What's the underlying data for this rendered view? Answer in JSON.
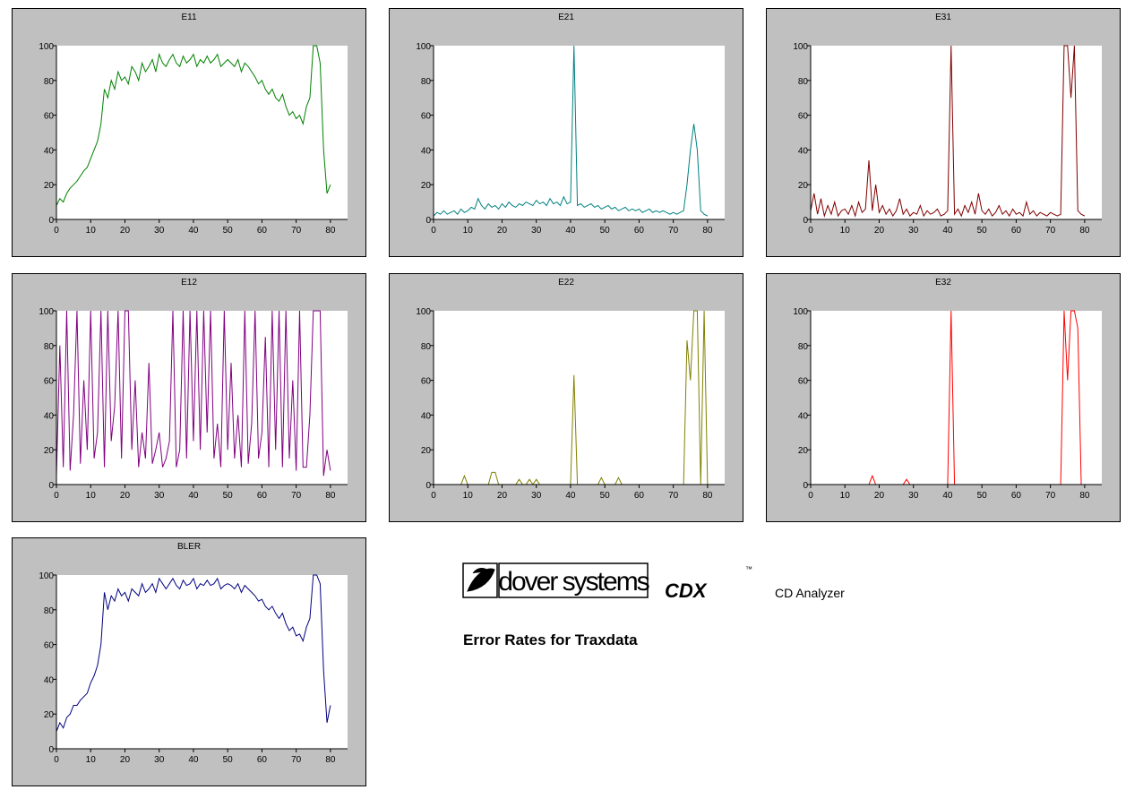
{
  "chart_data": [
    {
      "type": "line",
      "title": "E11",
      "color": "#008000",
      "xlim": [
        0,
        85
      ],
      "xticks": [
        0,
        10,
        20,
        30,
        40,
        50,
        60,
        70,
        80
      ],
      "ylim": [
        0,
        100
      ],
      "yticks": [
        0,
        20,
        40,
        60,
        80,
        100
      ],
      "x": [
        0,
        1,
        2,
        3,
        4,
        5,
        6,
        7,
        8,
        9,
        10,
        11,
        12,
        13,
        14,
        15,
        16,
        17,
        18,
        19,
        20,
        21,
        22,
        23,
        24,
        25,
        26,
        27,
        28,
        29,
        30,
        31,
        32,
        33,
        34,
        35,
        36,
        37,
        38,
        39,
        40,
        41,
        42,
        43,
        44,
        45,
        46,
        47,
        48,
        49,
        50,
        51,
        52,
        53,
        54,
        55,
        56,
        57,
        58,
        59,
        60,
        61,
        62,
        63,
        64,
        65,
        66,
        67,
        68,
        69,
        70,
        71,
        72,
        73,
        74,
        75,
        76,
        77,
        78,
        79,
        80
      ],
      "values": [
        8,
        12,
        10,
        15,
        18,
        20,
        22,
        25,
        28,
        30,
        35,
        40,
        45,
        55,
        75,
        70,
        80,
        75,
        85,
        80,
        82,
        78,
        88,
        85,
        80,
        90,
        85,
        88,
        92,
        85,
        95,
        90,
        88,
        92,
        95,
        90,
        88,
        94,
        90,
        92,
        95,
        88,
        92,
        90,
        94,
        90,
        92,
        95,
        88,
        90,
        92,
        90,
        88,
        92,
        85,
        90,
        88,
        85,
        82,
        78,
        80,
        75,
        72,
        75,
        70,
        68,
        72,
        65,
        60,
        62,
        58,
        60,
        55,
        65,
        70,
        100,
        100,
        90,
        40,
        15,
        20
      ]
    },
    {
      "type": "line",
      "title": "E21",
      "color": "#008080",
      "xlim": [
        0,
        85
      ],
      "xticks": [
        0,
        10,
        20,
        30,
        40,
        50,
        60,
        70,
        80
      ],
      "ylim": [
        0,
        100
      ],
      "yticks": [
        0,
        20,
        40,
        60,
        80,
        100
      ],
      "x": [
        0,
        1,
        2,
        3,
        4,
        5,
        6,
        7,
        8,
        9,
        10,
        11,
        12,
        13,
        14,
        15,
        16,
        17,
        18,
        19,
        20,
        21,
        22,
        23,
        24,
        25,
        26,
        27,
        28,
        29,
        30,
        31,
        32,
        33,
        34,
        35,
        36,
        37,
        38,
        39,
        40,
        41,
        42,
        43,
        44,
        45,
        46,
        47,
        48,
        49,
        50,
        51,
        52,
        53,
        54,
        55,
        56,
        57,
        58,
        59,
        60,
        61,
        62,
        63,
        64,
        65,
        66,
        67,
        68,
        69,
        70,
        71,
        72,
        73,
        74,
        75,
        76,
        77,
        78,
        79,
        80
      ],
      "values": [
        2,
        4,
        3,
        5,
        3,
        4,
        5,
        3,
        6,
        4,
        5,
        7,
        6,
        12,
        8,
        6,
        9,
        7,
        8,
        6,
        9,
        7,
        10,
        8,
        7,
        9,
        8,
        10,
        9,
        8,
        11,
        9,
        10,
        8,
        12,
        9,
        10,
        8,
        13,
        9,
        10,
        100,
        8,
        9,
        7,
        8,
        9,
        7,
        8,
        6,
        7,
        8,
        6,
        7,
        5,
        6,
        7,
        5,
        6,
        5,
        6,
        4,
        5,
        6,
        4,
        5,
        4,
        5,
        4,
        3,
        4,
        3,
        4,
        5,
        20,
        40,
        55,
        40,
        5,
        3,
        2
      ]
    },
    {
      "type": "line",
      "title": "E31",
      "color": "#800000",
      "xlim": [
        0,
        85
      ],
      "xticks": [
        0,
        10,
        20,
        30,
        40,
        50,
        60,
        70,
        80
      ],
      "ylim": [
        0,
        100
      ],
      "yticks": [
        0,
        20,
        40,
        60,
        80,
        100
      ],
      "x": [
        0,
        1,
        2,
        3,
        4,
        5,
        6,
        7,
        8,
        9,
        10,
        11,
        12,
        13,
        14,
        15,
        16,
        17,
        18,
        19,
        20,
        21,
        22,
        23,
        24,
        25,
        26,
        27,
        28,
        29,
        30,
        31,
        32,
        33,
        34,
        35,
        36,
        37,
        38,
        39,
        40,
        41,
        42,
        43,
        44,
        45,
        46,
        47,
        48,
        49,
        50,
        51,
        52,
        53,
        54,
        55,
        56,
        57,
        58,
        59,
        60,
        61,
        62,
        63,
        64,
        65,
        66,
        67,
        68,
        69,
        70,
        71,
        72,
        73,
        74,
        75,
        76,
        77,
        78,
        79,
        80
      ],
      "values": [
        5,
        15,
        3,
        12,
        2,
        8,
        3,
        10,
        2,
        5,
        6,
        3,
        8,
        2,
        10,
        4,
        6,
        34,
        5,
        20,
        4,
        8,
        3,
        6,
        2,
        5,
        12,
        3,
        6,
        2,
        4,
        3,
        8,
        2,
        5,
        3,
        4,
        6,
        2,
        3,
        5,
        100,
        3,
        6,
        2,
        8,
        4,
        10,
        3,
        15,
        5,
        3,
        6,
        2,
        4,
        8,
        3,
        5,
        2,
        6,
        3,
        4,
        2,
        10,
        3,
        5,
        2,
        4,
        3,
        2,
        4,
        3,
        2,
        3,
        100,
        100,
        70,
        100,
        5,
        3,
        2
      ]
    },
    {
      "type": "line",
      "title": "E12",
      "color": "#800080",
      "xlim": [
        0,
        85
      ],
      "xticks": [
        0,
        10,
        20,
        30,
        40,
        50,
        60,
        70,
        80
      ],
      "ylim": [
        0,
        100
      ],
      "yticks": [
        0,
        20,
        40,
        60,
        80,
        100
      ],
      "x": [
        0,
        1,
        2,
        3,
        4,
        5,
        6,
        7,
        8,
        9,
        10,
        11,
        12,
        13,
        14,
        15,
        16,
        17,
        18,
        19,
        20,
        21,
        22,
        23,
        24,
        25,
        26,
        27,
        28,
        29,
        30,
        31,
        32,
        33,
        34,
        35,
        36,
        37,
        38,
        39,
        40,
        41,
        42,
        43,
        44,
        45,
        46,
        47,
        48,
        49,
        50,
        51,
        52,
        53,
        54,
        55,
        56,
        57,
        58,
        59,
        60,
        61,
        62,
        63,
        64,
        65,
        66,
        67,
        68,
        69,
        70,
        71,
        72,
        73,
        74,
        75,
        76,
        77,
        78,
        79,
        80
      ],
      "values": [
        5,
        80,
        10,
        100,
        8,
        40,
        100,
        12,
        60,
        20,
        100,
        15,
        30,
        100,
        10,
        100,
        25,
        45,
        100,
        15,
        100,
        100,
        20,
        60,
        10,
        30,
        15,
        70,
        12,
        20,
        30,
        10,
        15,
        25,
        100,
        10,
        20,
        100,
        15,
        100,
        25,
        100,
        20,
        100,
        30,
        100,
        15,
        35,
        10,
        100,
        20,
        70,
        15,
        40,
        10,
        100,
        12,
        35,
        100,
        15,
        30,
        85,
        10,
        100,
        20,
        100,
        10,
        100,
        15,
        60,
        8,
        100,
        10,
        10,
        40,
        100,
        100,
        100,
        5,
        20,
        8
      ]
    },
    {
      "type": "line",
      "title": "E22",
      "color": "#808000",
      "xlim": [
        0,
        85
      ],
      "xticks": [
        0,
        10,
        20,
        30,
        40,
        50,
        60,
        70,
        80
      ],
      "ylim": [
        0,
        100
      ],
      "yticks": [
        0,
        20,
        40,
        60,
        80,
        100
      ],
      "x": [
        0,
        1,
        2,
        3,
        4,
        5,
        6,
        7,
        8,
        9,
        10,
        11,
        12,
        13,
        14,
        15,
        16,
        17,
        18,
        19,
        20,
        21,
        22,
        23,
        24,
        25,
        26,
        27,
        28,
        29,
        30,
        31,
        32,
        33,
        34,
        35,
        36,
        37,
        38,
        39,
        40,
        41,
        42,
        43,
        44,
        45,
        46,
        47,
        48,
        49,
        50,
        51,
        52,
        53,
        54,
        55,
        56,
        57,
        58,
        59,
        60,
        61,
        62,
        63,
        64,
        65,
        66,
        67,
        68,
        69,
        70,
        71,
        72,
        73,
        74,
        75,
        76,
        77,
        78,
        79,
        80
      ],
      "values": [
        0,
        0,
        0,
        0,
        0,
        0,
        0,
        0,
        0,
        5,
        0,
        0,
        0,
        0,
        0,
        0,
        0,
        7,
        7,
        0,
        0,
        0,
        0,
        0,
        0,
        3,
        0,
        0,
        3,
        0,
        3,
        0,
        0,
        0,
        0,
        0,
        0,
        0,
        0,
        0,
        0,
        63,
        0,
        0,
        0,
        0,
        0,
        0,
        0,
        4,
        0,
        0,
        0,
        0,
        4,
        0,
        0,
        0,
        0,
        0,
        0,
        0,
        0,
        0,
        0,
        0,
        0,
        0,
        0,
        0,
        0,
        0,
        0,
        0,
        83,
        60,
        100,
        100,
        0,
        100,
        0
      ]
    },
    {
      "type": "line",
      "title": "E32",
      "color": "#ff0000",
      "xlim": [
        0,
        85
      ],
      "xticks": [
        0,
        10,
        20,
        30,
        40,
        50,
        60,
        70,
        80
      ],
      "ylim": [
        0,
        100
      ],
      "yticks": [
        0,
        20,
        40,
        60,
        80,
        100
      ],
      "x": [
        0,
        1,
        2,
        3,
        4,
        5,
        6,
        7,
        8,
        9,
        10,
        11,
        12,
        13,
        14,
        15,
        16,
        17,
        18,
        19,
        20,
        21,
        22,
        23,
        24,
        25,
        26,
        27,
        28,
        29,
        30,
        31,
        32,
        33,
        34,
        35,
        36,
        37,
        38,
        39,
        40,
        41,
        42,
        43,
        44,
        45,
        46,
        47,
        48,
        49,
        50,
        51,
        52,
        53,
        54,
        55,
        56,
        57,
        58,
        59,
        60,
        61,
        62,
        63,
        64,
        65,
        66,
        67,
        68,
        69,
        70,
        71,
        72,
        73,
        74,
        75,
        76,
        77,
        78,
        79,
        80
      ],
      "values": [
        0,
        0,
        0,
        0,
        0,
        0,
        0,
        0,
        0,
        0,
        0,
        0,
        0,
        0,
        0,
        0,
        0,
        0,
        5,
        0,
        0,
        0,
        0,
        0,
        0,
        0,
        0,
        0,
        3,
        0,
        0,
        0,
        0,
        0,
        0,
        0,
        0,
        0,
        0,
        0,
        0,
        100,
        0,
        0,
        0,
        0,
        0,
        0,
        0,
        0,
        0,
        0,
        0,
        0,
        0,
        0,
        0,
        0,
        0,
        0,
        0,
        0,
        0,
        0,
        0,
        0,
        0,
        0,
        0,
        0,
        0,
        0,
        0,
        0,
        100,
        60,
        100,
        100,
        90,
        0,
        0
      ]
    },
    {
      "type": "line",
      "title": "BLER",
      "color": "#000080",
      "xlim": [
        0,
        85
      ],
      "xticks": [
        0,
        10,
        20,
        30,
        40,
        50,
        60,
        70,
        80
      ],
      "ylim": [
        0,
        100
      ],
      "yticks": [
        0,
        20,
        40,
        60,
        80,
        100
      ],
      "x": [
        0,
        1,
        2,
        3,
        4,
        5,
        6,
        7,
        8,
        9,
        10,
        11,
        12,
        13,
        14,
        15,
        16,
        17,
        18,
        19,
        20,
        21,
        22,
        23,
        24,
        25,
        26,
        27,
        28,
        29,
        30,
        31,
        32,
        33,
        34,
        35,
        36,
        37,
        38,
        39,
        40,
        41,
        42,
        43,
        44,
        45,
        46,
        47,
        48,
        49,
        50,
        51,
        52,
        53,
        54,
        55,
        56,
        57,
        58,
        59,
        60,
        61,
        62,
        63,
        64,
        65,
        66,
        67,
        68,
        69,
        70,
        71,
        72,
        73,
        74,
        75,
        76,
        77,
        78,
        79,
        80
      ],
      "values": [
        10,
        15,
        12,
        18,
        20,
        25,
        25,
        28,
        30,
        32,
        38,
        42,
        48,
        60,
        90,
        80,
        88,
        85,
        92,
        88,
        90,
        85,
        92,
        90,
        88,
        95,
        90,
        92,
        95,
        90,
        98,
        95,
        92,
        95,
        98,
        94,
        92,
        97,
        94,
        95,
        98,
        92,
        95,
        94,
        97,
        94,
        95,
        98,
        92,
        94,
        95,
        94,
        92,
        95,
        90,
        94,
        92,
        90,
        88,
        85,
        86,
        82,
        80,
        82,
        78,
        75,
        78,
        72,
        68,
        70,
        65,
        66,
        62,
        70,
        75,
        100,
        100,
        95,
        45,
        15,
        25
      ]
    }
  ],
  "brand": {
    "logo": "dover systems",
    "product": "CDX",
    "trademark": "™",
    "subtitle": "CD Analyzer",
    "caption": "Error Rates for Traxdata"
  }
}
